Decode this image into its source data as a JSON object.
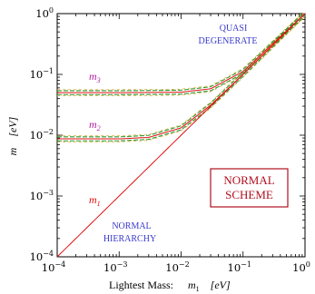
{
  "chart_data": {
    "type": "line",
    "xscale": "log",
    "yscale": "log",
    "xlim": [
      0.0001,
      1
    ],
    "ylim": [
      0.0001,
      1
    ],
    "xlabel": "Lightest Mass:",
    "xlabel_symbol": "m",
    "xlabel_sub": "1",
    "xlabel_unit": "[eV]",
    "ylabel_symbol": "m",
    "ylabel_unit": "[eV]",
    "x_ticks": [
      "10",
      "10",
      "10",
      "10",
      "10"
    ],
    "x_tick_exponents": [
      "−4",
      "−3",
      "−2",
      "−1",
      "0"
    ],
    "y_ticks": [
      "10",
      "10",
      "10",
      "10",
      "10"
    ],
    "y_tick_exponents": [
      "−4",
      "−3",
      "−2",
      "−1",
      "0"
    ],
    "series": [
      {
        "name": "m1",
        "label": "m",
        "label_sub": "1",
        "color": "#e01010",
        "x": [
          0.0001,
          0.001,
          0.01,
          0.1,
          1
        ],
        "values": [
          0.0001,
          0.001,
          0.01,
          0.1,
          1
        ]
      },
      {
        "name": "m2",
        "label": "m",
        "label_sub": "2",
        "color": "#e01010",
        "x": [
          0.0001,
          0.001,
          0.003,
          0.01,
          0.03,
          0.1,
          1
        ],
        "values": [
          0.0087,
          0.0087,
          0.0092,
          0.0132,
          0.0312,
          0.1004,
          1
        ]
      },
      {
        "name": "m3",
        "label": "m",
        "label_sub": "3",
        "color": "#e01010",
        "x": [
          0.0001,
          0.001,
          0.01,
          0.03,
          0.1,
          1
        ],
        "values": [
          0.05,
          0.05,
          0.051,
          0.058,
          0.112,
          1.001
        ]
      }
    ],
    "band_color": "#2e9a2e",
    "band_edge_color": "#e0a020",
    "annotations": {
      "quasi_line1": "QUASI",
      "quasi_line2": "DEGENERATE",
      "normal_line1": "NORMAL",
      "normal_line2": "HIERARCHY",
      "box_line1": "NORMAL",
      "box_line2": "SCHEME"
    },
    "annotation_color_blue": "#3a3acc",
    "annotation_color_magenta": "#b0209f",
    "box_color": "#b01020"
  }
}
